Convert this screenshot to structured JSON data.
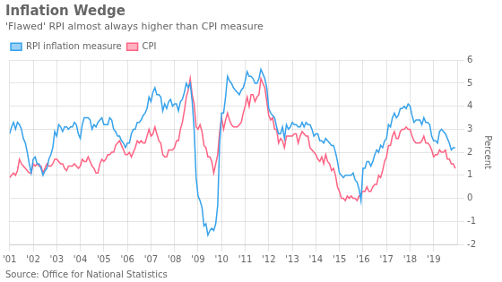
{
  "chart_data": {
    "type": "line",
    "title": "Inflation Wedge",
    "subtitle": "'Flawed' RPI almost always higher than CPI measure",
    "annotations": [
      "Source: Office for National Statistics"
    ],
    "y_label": "Percent",
    "xlim": [
      2001,
      2020
    ],
    "xticks": [
      {
        "value": 2001,
        "label": "'01"
      },
      {
        "value": 2002,
        "label": "'02"
      },
      {
        "value": 2003,
        "label": "'03"
      },
      {
        "value": 2004,
        "label": "'04"
      },
      {
        "value": 2005,
        "label": "'05"
      },
      {
        "value": 2006,
        "label": "'06"
      },
      {
        "value": 2007,
        "label": "'07"
      },
      {
        "value": 2008,
        "label": "'08"
      },
      {
        "value": 2009,
        "label": "'09"
      },
      {
        "value": 2010,
        "label": "'10"
      },
      {
        "value": 2011,
        "label": "'11"
      },
      {
        "value": 2012,
        "label": "'12"
      },
      {
        "value": 2013,
        "label": "'13"
      },
      {
        "value": 2014,
        "label": "'14"
      },
      {
        "value": 2015,
        "label": "'15"
      },
      {
        "value": 2016,
        "label": "'16"
      },
      {
        "value": 2017,
        "label": "'17"
      },
      {
        "value": 2018,
        "label": "'18"
      },
      {
        "value": 2019,
        "label": "'19"
      }
    ],
    "ylim": [
      -2,
      6
    ],
    "yticks": [
      -2,
      -1,
      0,
      1,
      2,
      3,
      4,
      5,
      6
    ],
    "grid": true,
    "legend": "upper left",
    "x": [
      2001,
      2001.0833,
      2001.1667,
      2001.25,
      2001.3333,
      2001.4167,
      2001.5,
      2001.5833,
      2001.6667,
      2001.75,
      2001.8333,
      2001.9167,
      2002,
      2002.0833,
      2002.1667,
      2002.25,
      2002.3333,
      2002.4167,
      2002.5,
      2002.5833,
      2002.6667,
      2002.75,
      2002.8333,
      2002.9167,
      2003,
      2003.0833,
      2003.1667,
      2003.25,
      2003.3333,
      2003.4167,
      2003.5,
      2003.5833,
      2003.6667,
      2003.75,
      2003.8333,
      2003.9167,
      2004,
      2004.0833,
      2004.1667,
      2004.25,
      2004.3333,
      2004.4167,
      2004.5,
      2004.5833,
      2004.6667,
      2004.75,
      2004.8333,
      2004.9167,
      2005,
      2005.0833,
      2005.1667,
      2005.25,
      2005.3333,
      2005.4167,
      2005.5,
      2005.5833,
      2005.6667,
      2005.75,
      2005.8333,
      2005.9167,
      2006,
      2006.0833,
      2006.1667,
      2006.25,
      2006.3333,
      2006.4167,
      2006.5,
      2006.5833,
      2006.6667,
      2006.75,
      2006.8333,
      2006.9167,
      2007,
      2007.0833,
      2007.1667,
      2007.25,
      2007.3333,
      2007.4167,
      2007.5,
      2007.5833,
      2007.6667,
      2007.75,
      2007.8333,
      2007.9167,
      2008,
      2008.0833,
      2008.1667,
      2008.25,
      2008.3333,
      2008.4167,
      2008.5,
      2008.5833,
      2008.6667,
      2008.75,
      2008.8333,
      2008.9167,
      2009,
      2009.0833,
      2009.1667,
      2009.25,
      2009.3333,
      2009.4167,
      2009.5,
      2009.5833,
      2009.6667,
      2009.75,
      2009.8333,
      2009.9167,
      2010,
      2010.0833,
      2010.1667,
      2010.25,
      2010.3333,
      2010.4167,
      2010.5,
      2010.5833,
      2010.6667,
      2010.75,
      2010.8333,
      2010.9167,
      2011,
      2011.0833,
      2011.1667,
      2011.25,
      2011.3333,
      2011.4167,
      2011.5,
      2011.5833,
      2011.6667,
      2011.75,
      2011.8333,
      2011.9167,
      2012,
      2012.0833,
      2012.1667,
      2012.25,
      2012.3333,
      2012.4167,
      2012.5,
      2012.5833,
      2012.6667,
      2012.75,
      2012.8333,
      2012.9167,
      2013,
      2013.0833,
      2013.1667,
      2013.25,
      2013.3333,
      2013.4167,
      2013.5,
      2013.5833,
      2013.6667,
      2013.75,
      2013.8333,
      2013.9167,
      2014,
      2014.0833,
      2014.1667,
      2014.25,
      2014.3333,
      2014.4167,
      2014.5,
      2014.5833,
      2014.6667,
      2014.75,
      2014.8333,
      2014.9167,
      2015,
      2015.0833,
      2015.1667,
      2015.25,
      2015.3333,
      2015.4167,
      2015.5,
      2015.5833,
      2015.6667,
      2015.75,
      2015.8333,
      2015.9167,
      2016,
      2016.0833,
      2016.1667,
      2016.25,
      2016.3333,
      2016.4167,
      2016.5,
      2016.5833,
      2016.6667,
      2016.75,
      2016.8333,
      2016.9167,
      2017,
      2017.0833,
      2017.1667,
      2017.25,
      2017.3333,
      2017.4167,
      2017.5,
      2017.5833,
      2017.6667,
      2017.75,
      2017.8333,
      2017.9167,
      2018,
      2018.0833,
      2018.1667,
      2018.25,
      2018.3333,
      2018.4167,
      2018.5,
      2018.5833,
      2018.6667,
      2018.75,
      2018.8333,
      2018.9167,
      2019,
      2019.0833,
      2019.1667,
      2019.25,
      2019.3333,
      2019.4167,
      2019.5,
      2019.5833,
      2019.6667,
      2019.75,
      2019.8333,
      2019.9167
    ],
    "series": [
      {
        "name": "RPI inflation measure",
        "values": [
          2.8,
          3.1,
          3.3,
          3.0,
          3.3,
          3.2,
          3.0,
          2.6,
          2.4,
          2.0,
          1.5,
          1.1,
          1.7,
          1.8,
          1.5,
          1.5,
          1.3,
          1.0,
          1.2,
          1.3,
          1.7,
          1.9,
          2.2,
          2.9,
          2.7,
          3.2,
          3.1,
          2.9,
          3.1,
          3.1,
          3.0,
          3.1,
          3.1,
          3.3,
          3.2,
          2.8,
          2.6,
          3.2,
          3.5,
          3.5,
          3.5,
          3.4,
          3.0,
          3.2,
          3.1,
          3.3,
          3.4,
          3.5,
          3.2,
          3.2,
          3.2,
          3.5,
          3.4,
          3.0,
          2.9,
          2.7,
          2.7,
          2.5,
          2.4,
          2.2,
          2.4,
          2.4,
          2.8,
          3.0,
          3.0,
          3.3,
          3.3,
          3.4,
          3.6,
          3.7,
          3.9,
          4.4,
          4.2,
          4.6,
          4.8,
          4.5,
          4.5,
          4.4,
          3.8,
          4.1,
          3.9,
          4.2,
          4.3,
          4.0,
          4.1,
          4.1,
          3.8,
          4.2,
          4.3,
          4.6,
          5.0,
          4.8,
          5.0,
          4.2,
          3.0,
          0.9,
          0.1,
          -0.1,
          -0.4,
          -1.2,
          -1.1,
          -1.6,
          -1.4,
          -1.3,
          -1.4,
          -1.1,
          -0.3,
          2.4,
          3.7,
          3.7,
          4.4,
          5.3,
          5.1,
          5.0,
          4.8,
          4.7,
          4.6,
          4.5,
          4.7,
          4.8,
          5.1,
          5.5,
          5.3,
          5.3,
          5.2,
          5.0,
          5.0,
          5.2,
          5.6,
          5.4,
          5.2,
          4.8,
          3.9,
          3.7,
          3.6,
          3.5,
          3.1,
          2.8,
          2.8,
          3.1,
          2.6,
          3.2,
          3.0,
          3.1,
          3.3,
          3.2,
          3.2,
          3.1,
          3.1,
          3.3,
          3.1,
          3.3,
          3.2,
          3.2,
          3.0,
          2.7,
          2.8,
          2.8,
          2.5,
          2.5,
          2.4,
          2.6,
          2.5,
          2.4,
          2.3,
          2.3,
          2.0,
          1.6,
          1.1,
          1.0,
          0.9,
          1.0,
          1.0,
          1.0,
          1.0,
          1.1,
          0.8,
          0.7,
          0.4,
          -0.1,
          1.3,
          1.3,
          1.6,
          1.6,
          1.4,
          1.6,
          1.9,
          2.1,
          2.0,
          2.3,
          2.2,
          2.5,
          2.6,
          3.2,
          3.1,
          3.5,
          3.7,
          3.5,
          3.6,
          3.9,
          3.9,
          4.0,
          3.9,
          4.1,
          4.0,
          3.6,
          3.3,
          3.4,
          3.4,
          3.4,
          3.2,
          3.5,
          3.3,
          3.3,
          3.2,
          2.7,
          2.5,
          2.5,
          2.4,
          2.9,
          3.0,
          2.9,
          2.8,
          2.6,
          2.4,
          2.1,
          2.2,
          2.2
        ]
      },
      {
        "name": "CPI",
        "values": [
          0.9,
          1.0,
          1.1,
          1.0,
          1.2,
          1.7,
          1.5,
          1.4,
          1.3,
          1.2,
          1.1,
          1.1,
          1.5,
          1.4,
          1.5,
          1.4,
          1.4,
          1.1,
          1.3,
          1.5,
          1.4,
          1.4,
          1.5,
          1.7,
          1.7,
          1.6,
          1.5,
          1.5,
          1.3,
          1.2,
          1.4,
          1.4,
          1.4,
          1.5,
          1.4,
          1.3,
          1.4,
          1.7,
          1.6,
          1.6,
          1.8,
          1.6,
          1.4,
          1.3,
          1.1,
          1.1,
          1.5,
          1.7,
          1.6,
          1.7,
          1.9,
          1.9,
          2.0,
          2.0,
          2.3,
          2.4,
          2.5,
          2.3,
          2.1,
          1.9,
          1.9,
          2.0,
          1.8,
          2.0,
          2.2,
          2.5,
          2.4,
          2.5,
          2.4,
          2.4,
          2.7,
          3.0,
          2.7,
          2.8,
          3.1,
          2.8,
          2.5,
          2.4,
          1.9,
          1.8,
          1.8,
          2.1,
          2.1,
          2.1,
          2.2,
          2.5,
          2.5,
          3.0,
          3.3,
          3.8,
          4.4,
          4.7,
          5.2,
          4.5,
          4.1,
          3.1,
          3.0,
          3.2,
          2.9,
          2.3,
          2.2,
          1.8,
          1.8,
          1.6,
          1.1,
          1.5,
          1.9,
          2.9,
          3.5,
          3.0,
          3.4,
          3.7,
          3.4,
          3.2,
          3.1,
          3.1,
          3.1,
          3.2,
          3.3,
          3.7,
          4.0,
          4.4,
          4.0,
          4.5,
          4.5,
          4.2,
          4.4,
          4.5,
          5.2,
          5.0,
          4.8,
          4.2,
          3.6,
          3.4,
          3.5,
          3.0,
          3.0,
          2.4,
          2.6,
          2.5,
          2.2,
          2.7,
          2.7,
          2.7,
          2.7,
          2.8,
          2.8,
          2.4,
          2.7,
          2.9,
          2.8,
          2.7,
          2.7,
          2.2,
          2.1,
          2.0,
          1.9,
          1.7,
          1.6,
          1.8,
          1.5,
          1.9,
          1.6,
          1.5,
          1.2,
          1.3,
          1.0,
          0.5,
          0.3,
          0.0,
          0.0,
          -0.1,
          0.1,
          0.0,
          0.1,
          0.0,
          0.0,
          -0.1,
          0.1,
          0.2,
          0.3,
          0.3,
          0.5,
          0.3,
          0.3,
          0.5,
          0.6,
          0.6,
          1.0,
          0.9,
          1.2,
          1.6,
          1.8,
          2.3,
          2.3,
          2.7,
          2.9,
          2.6,
          2.6,
          2.9,
          3.0,
          3.0,
          3.1,
          3.0,
          3.0,
          2.7,
          2.5,
          2.4,
          2.4,
          2.4,
          2.5,
          2.7,
          2.4,
          2.4,
          2.3,
          2.1,
          1.8,
          1.9,
          1.9,
          2.1,
          2.0,
          2.0,
          2.1,
          1.7,
          1.7,
          1.5,
          1.5,
          1.3
        ]
      }
    ]
  }
}
